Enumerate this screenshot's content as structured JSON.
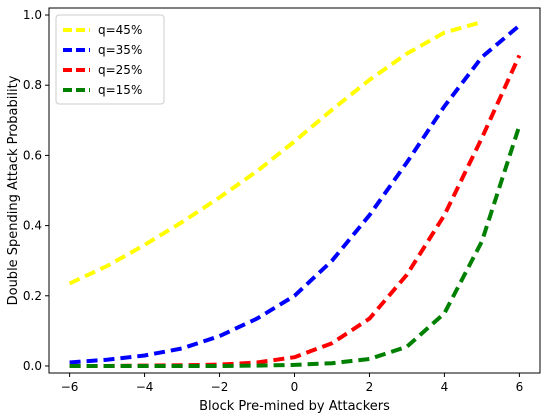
{
  "chart_data": {
    "type": "line",
    "xlabel": "Block Pre-mined by Attackers",
    "ylabel": "Double Spending Attack Probability",
    "xlim": [
      -6.55,
      6.55
    ],
    "ylim": [
      -0.02,
      1.02
    ],
    "xticks": [
      -6,
      -4,
      -2,
      0,
      2,
      4,
      6
    ],
    "yticks": [
      0.0,
      0.2,
      0.4,
      0.6,
      0.8,
      1.0
    ],
    "xtick_labels": [
      "−6",
      "−4",
      "−2",
      "0",
      "2",
      "4",
      "6"
    ],
    "ytick_labels": [
      "0.0",
      "0.2",
      "0.4",
      "0.6",
      "0.8",
      "1.0"
    ],
    "legend_position": "top-left",
    "grid": false,
    "series": [
      {
        "name": "q=45%",
        "color": "#ffff00",
        "x": [
          -6,
          -5,
          -4,
          -3,
          -2,
          -1,
          0,
          1,
          2,
          3,
          4,
          5
        ],
        "y": [
          0.235,
          0.285,
          0.345,
          0.41,
          0.48,
          0.555,
          0.64,
          0.73,
          0.815,
          0.89,
          0.95,
          0.98
        ]
      },
      {
        "name": "q=35%",
        "color": "#0000ff",
        "x": [
          -6,
          -5,
          -4,
          -3,
          -2,
          -1,
          0,
          1,
          2,
          3,
          4,
          5,
          6
        ],
        "y": [
          0.01,
          0.018,
          0.03,
          0.05,
          0.085,
          0.135,
          0.2,
          0.3,
          0.43,
          0.58,
          0.74,
          0.88,
          0.97
        ]
      },
      {
        "name": "q=25%",
        "color": "#ff0000",
        "x": [
          -6,
          -5,
          -4,
          -3,
          -2,
          -1,
          0,
          1,
          2,
          3,
          4,
          5,
          6
        ],
        "y": [
          0.0,
          0.0,
          0.001,
          0.002,
          0.004,
          0.01,
          0.025,
          0.065,
          0.135,
          0.26,
          0.43,
          0.65,
          0.885
        ]
      },
      {
        "name": "q=15%",
        "color": "#008000",
        "x": [
          -6,
          -5,
          -4,
          -3,
          -2,
          -1,
          0,
          1,
          2,
          3,
          4,
          5,
          6
        ],
        "y": [
          0.0,
          0.0,
          0.0,
          0.0,
          0.0,
          0.001,
          0.003,
          0.008,
          0.02,
          0.055,
          0.15,
          0.355,
          0.685
        ]
      }
    ]
  }
}
